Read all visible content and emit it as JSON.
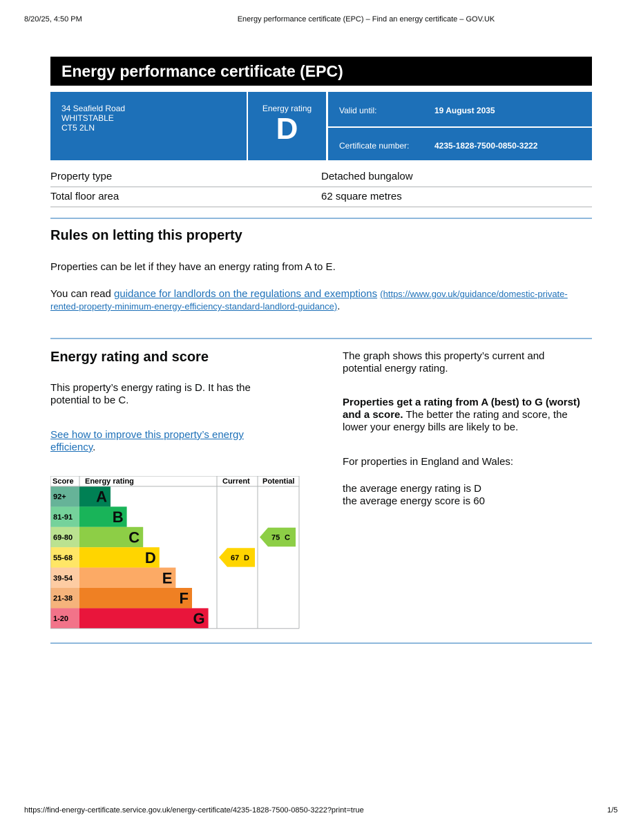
{
  "print_header": {
    "date": "8/20/25, 4:50 PM",
    "title": "Energy performance certificate (EPC) – Find an energy certificate – GOV.UK"
  },
  "title": "Energy performance certificate (EPC)",
  "summary": {
    "address": [
      "34 Seafield Road",
      "WHITSTABLE",
      "CT5 2LN"
    ],
    "rating_label": "Energy rating",
    "rating": "D",
    "valid_until_label": "Valid until:",
    "valid_until": "19 August 2035",
    "certificate_label": "Certificate number:",
    "certificate_number": "4235-1828-7500-0850-3222"
  },
  "property": [
    [
      "Property type",
      "Detached bungalow"
    ],
    [
      "Total floor area",
      "62 square metres"
    ]
  ],
  "letting": {
    "heading": "Rules on letting this property",
    "p1": "Properties can be let if they have an energy rating from A to E.",
    "p2_prefix": "You can read ",
    "p2_link": "guidance for landlords on the regulations and exemptions",
    "p2_url": "(https://www.gov.uk/guidance/domestic-private-rented-property-minimum-energy-efficiency-standard-landlord-guidance)",
    "p2_suffix": "."
  },
  "energy": {
    "heading": "Energy rating and score",
    "p1": "This property’s energy rating is D. It has the potential to be C.",
    "link": "See how to improve this property’s energy efficiency",
    "link_suffix": ".",
    "right_p1": "The graph shows this property’s current and potential energy rating.",
    "right_p2_bold": "Properties get a rating from A (best) to G (worst) and a score.",
    "right_p2_rest": " The better the rating and score, the lower your energy bills are likely to be.",
    "right_p3": "For properties in England and Wales:",
    "right_p4": [
      "the average energy rating is D",
      "the average energy score is 60"
    ]
  },
  "rating_chart": {
    "headers": [
      "Score",
      "Energy rating",
      "Current",
      "Potential"
    ],
    "bands": [
      {
        "score": "92+",
        "letter": "A",
        "color": "#008054"
      },
      {
        "score": "81-91",
        "letter": "B",
        "color": "#19b459"
      },
      {
        "score": "69-80",
        "letter": "C",
        "color": "#8dce46"
      },
      {
        "score": "55-68",
        "letter": "D",
        "color": "#ffd500"
      },
      {
        "score": "39-54",
        "letter": "E",
        "color": "#fcaa65"
      },
      {
        "score": "21-38",
        "letter": "F",
        "color": "#ef8023"
      },
      {
        "score": "1-20",
        "letter": "G",
        "color": "#e9153b"
      }
    ],
    "current": {
      "score": 67,
      "letter": "D"
    },
    "potential": {
      "score": 75,
      "letter": "C"
    }
  },
  "footer": {
    "url": "https://find-energy-certificate.service.gov.uk/energy-certificate/4235-1828-7500-0850-3222?print=true",
    "page": "1/5"
  }
}
